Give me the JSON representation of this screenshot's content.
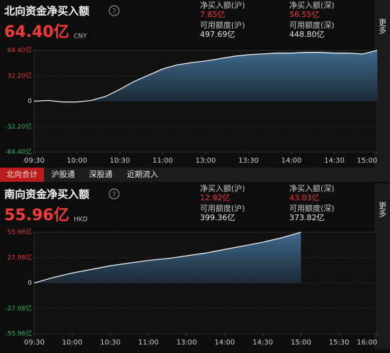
{
  "chart_data": [
    {
      "type": "area",
      "title": "北向资金净买入额",
      "total": "64.40亿",
      "currency": "CNY",
      "stats": [
        {
          "label": "净买入额(沪)",
          "value": "7.85亿"
        },
        {
          "label": "净买入额(深)",
          "value": "56.55亿"
        },
        {
          "label": "可用额度(沪)",
          "value": "497.69亿"
        },
        {
          "label": "可用额度(深)",
          "value": "448.80亿"
        }
      ],
      "x": [
        0,
        10,
        20,
        30,
        40,
        50,
        60,
        70,
        80,
        90,
        100,
        110,
        120,
        130,
        140,
        150,
        160,
        170,
        180,
        190,
        200,
        210,
        220,
        230,
        240
      ],
      "values": [
        0,
        1,
        -1,
        -1,
        1,
        6,
        15,
        25,
        33,
        41,
        46,
        49,
        51,
        54,
        57,
        59,
        60,
        61,
        61,
        62,
        62,
        61,
        61,
        60,
        64.4
      ],
      "xlim": [
        0,
        240
      ],
      "xticks": [
        {
          "value": 0,
          "label": "09:30"
        },
        {
          "value": 30,
          "label": "10:00"
        },
        {
          "value": 60,
          "label": "10:30"
        },
        {
          "value": 90,
          "label": "11:00"
        },
        {
          "value": 120,
          "label": "13:00"
        },
        {
          "value": 150,
          "label": "13:30"
        },
        {
          "value": 180,
          "label": "14:00"
        },
        {
          "value": 210,
          "label": "14:30"
        },
        {
          "value": 240,
          "label": "15:00"
        }
      ],
      "ylim": [
        -64.4,
        64.4
      ],
      "yticks": [
        {
          "value": 64.4,
          "label": "64.40亿"
        },
        {
          "value": 32.2,
          "label": "32.20亿"
        },
        0,
        {
          "value": -32.2,
          "label": "-32.20亿"
        },
        {
          "value": -64.4,
          "label": "-64.40亿"
        }
      ],
      "color": "#e8eef4",
      "grid": true
    },
    {
      "type": "area",
      "title": "南向资金净买入额",
      "total": "55.96亿",
      "currency": "HKD",
      "stats": [
        {
          "label": "净买入额(沪)",
          "value": "12.92亿"
        },
        {
          "label": "净买入额(深)",
          "value": "43.03亿"
        },
        {
          "label": "可用额度(沪)",
          "value": "399.36亿"
        },
        {
          "label": "可用额度(深)",
          "value": "373.82亿"
        }
      ],
      "x": [
        0,
        0.5,
        1,
        1.5,
        2,
        2.5,
        3,
        3.5,
        4,
        4.5,
        5,
        5.5,
        6,
        6.5,
        7
      ],
      "values": [
        0,
        6,
        11,
        15,
        19,
        22,
        25,
        27,
        30,
        33,
        37,
        41,
        45,
        50,
        55.96
      ],
      "xlim": [
        0,
        9
      ],
      "xticks": [
        {
          "value": 0,
          "label": "09:30"
        },
        {
          "value": 1,
          "label": "10:00"
        },
        {
          "value": 2,
          "label": "10:30"
        },
        {
          "value": 3,
          "label": "11:00"
        },
        {
          "value": 4,
          "label": "13:00"
        },
        {
          "value": 5,
          "label": "14:00"
        },
        {
          "value": 6,
          "label": "14:30"
        },
        {
          "value": 7,
          "label": "15:00"
        },
        {
          "value": 8,
          "label": "15:30"
        },
        {
          "value": 9,
          "label": "16:00"
        }
      ],
      "ylim": [
        -55.96,
        55.96
      ],
      "yticks": [
        {
          "value": 55.96,
          "label": "55.96亿"
        },
        {
          "value": 27.98,
          "label": "27.98亿"
        },
        0,
        {
          "value": -27.98,
          "label": "-27.98亿"
        },
        {
          "value": -55.96,
          "label": "-55.96亿"
        }
      ],
      "color": "#e8eef4",
      "grid": true
    }
  ],
  "tabs": [
    "北向合计",
    "沪股通",
    "深股通",
    "近期流入"
  ],
  "more": "更多"
}
